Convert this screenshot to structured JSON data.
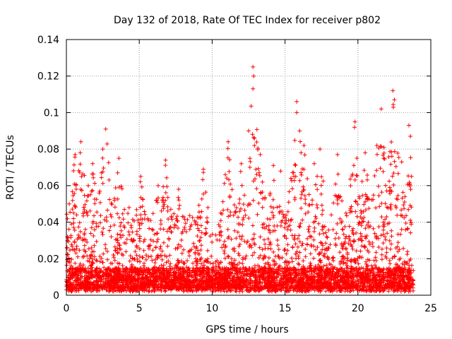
{
  "chart_data": {
    "type": "scatter",
    "title": "Day 132 of 2018, Rate Of TEC Index for receiver p802",
    "xlabel": "GPS time / hours",
    "ylabel": "ROTI / TECUs",
    "xlim": [
      0,
      25
    ],
    "ylim": [
      0,
      0.14
    ],
    "x_ticks": [
      0,
      5,
      10,
      15,
      20,
      25
    ],
    "x_tick_labels": [
      "0",
      "5",
      "10",
      "15",
      "20",
      "25"
    ],
    "y_ticks": [
      0,
      0.02,
      0.04,
      0.06,
      0.08,
      0.1,
      0.12,
      0.14
    ],
    "y_tick_labels": [
      "0",
      "0.02",
      "0.04",
      "0.06",
      "0.08",
      "0.1",
      "0.12",
      "0.14"
    ],
    "grid": true,
    "marker": "+",
    "series": [
      {
        "name": "p802 ROTI",
        "color": "#ff0000",
        "x_range": [
          0,
          23.8
        ],
        "baseline_range": [
          0.002,
          0.015
        ],
        "notable_points": [
          {
            "x": 0.2,
            "y": 0.05
          },
          {
            "x": 0.5,
            "y": 0.045
          },
          {
            "x": 0.6,
            "y": 0.077
          },
          {
            "x": 1.0,
            "y": 0.084
          },
          {
            "x": 1.5,
            "y": 0.06
          },
          {
            "x": 1.8,
            "y": 0.072
          },
          {
            "x": 2.5,
            "y": 0.08
          },
          {
            "x": 2.7,
            "y": 0.091
          },
          {
            "x": 3.3,
            "y": 0.053
          },
          {
            "x": 3.6,
            "y": 0.075
          },
          {
            "x": 4.3,
            "y": 0.048
          },
          {
            "x": 5.1,
            "y": 0.065
          },
          {
            "x": 6.3,
            "y": 0.06
          },
          {
            "x": 6.8,
            "y": 0.074
          },
          {
            "x": 7.7,
            "y": 0.058
          },
          {
            "x": 9.4,
            "y": 0.069
          },
          {
            "x": 10.9,
            "y": 0.066
          },
          {
            "x": 11.1,
            "y": 0.084
          },
          {
            "x": 12.0,
            "y": 0.072
          },
          {
            "x": 12.8,
            "y": 0.125
          },
          {
            "x": 12.85,
            "y": 0.12
          },
          {
            "x": 12.8,
            "y": 0.113
          },
          {
            "x": 12.9,
            "y": 0.082
          },
          {
            "x": 13.3,
            "y": 0.077
          },
          {
            "x": 14.2,
            "y": 0.071
          },
          {
            "x": 14.7,
            "y": 0.068
          },
          {
            "x": 15.4,
            "y": 0.064
          },
          {
            "x": 15.8,
            "y": 0.106
          },
          {
            "x": 15.8,
            "y": 0.1
          },
          {
            "x": 16.0,
            "y": 0.09
          },
          {
            "x": 16.3,
            "y": 0.082
          },
          {
            "x": 17.0,
            "y": 0.072
          },
          {
            "x": 17.4,
            "y": 0.08
          },
          {
            "x": 18.6,
            "y": 0.077
          },
          {
            "x": 19.8,
            "y": 0.095
          },
          {
            "x": 20.5,
            "y": 0.078
          },
          {
            "x": 21.3,
            "y": 0.082
          },
          {
            "x": 21.6,
            "y": 0.102
          },
          {
            "x": 22.4,
            "y": 0.112
          },
          {
            "x": 22.5,
            "y": 0.107
          },
          {
            "x": 23.0,
            "y": 0.073
          },
          {
            "x": 23.5,
            "y": 0.093
          },
          {
            "x": 23.6,
            "y": 0.087
          }
        ]
      }
    ],
    "legend": "none"
  }
}
